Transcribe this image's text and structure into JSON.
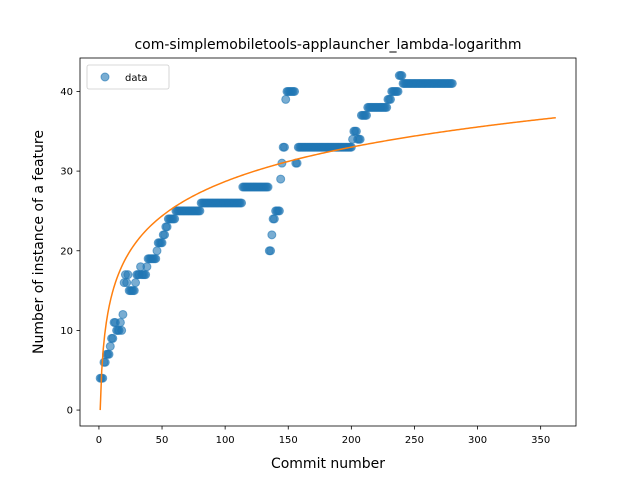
{
  "chart_data": {
    "type": "scatter",
    "title": "com-simplemobiletools-applauncher_lambda-logarithm",
    "xlabel": "Commit number",
    "ylabel": "Number of instance of a feature",
    "xlim": [
      -15,
      378
    ],
    "ylim": [
      -2,
      44.2
    ],
    "xticks": [
      0,
      50,
      100,
      150,
      200,
      250,
      300,
      350
    ],
    "yticks": [
      0,
      10,
      20,
      30,
      40
    ],
    "grid": false,
    "legend": {
      "position": "top-left",
      "entries": [
        "data"
      ]
    },
    "colors": {
      "scatter": "#1f77b4",
      "fit": "#ff7f0e"
    },
    "series": [
      {
        "name": "data",
        "kind": "scatter",
        "points": [
          [
            1,
            4
          ],
          [
            2,
            4
          ],
          [
            3,
            4
          ],
          [
            4,
            6
          ],
          [
            5,
            6
          ],
          [
            6,
            7
          ],
          [
            7,
            7
          ],
          [
            8,
            7
          ],
          [
            9,
            8
          ],
          [
            10,
            9
          ],
          [
            11,
            9
          ],
          [
            12,
            11
          ],
          [
            13,
            11
          ],
          [
            14,
            10
          ],
          [
            15,
            10
          ],
          [
            16,
            10
          ],
          [
            17,
            11
          ],
          [
            18,
            10
          ],
          [
            19,
            12
          ],
          [
            20,
            16
          ],
          [
            21,
            17
          ],
          [
            22,
            16
          ],
          [
            23,
            17
          ],
          [
            24,
            15
          ],
          [
            25,
            15
          ],
          [
            26,
            15
          ],
          [
            27,
            15
          ],
          [
            28,
            15
          ],
          [
            29,
            16
          ],
          [
            30,
            17
          ],
          [
            31,
            17
          ],
          [
            32,
            17
          ],
          [
            33,
            18
          ],
          [
            34,
            17
          ],
          [
            35,
            17
          ],
          [
            36,
            17
          ],
          [
            37,
            17
          ],
          [
            38,
            18
          ],
          [
            39,
            19
          ],
          [
            40,
            19
          ],
          [
            41,
            19
          ],
          [
            42,
            19
          ],
          [
            43,
            19
          ],
          [
            44,
            19
          ],
          [
            45,
            19
          ],
          [
            46,
            20
          ],
          [
            47,
            21
          ],
          [
            48,
            21
          ],
          [
            49,
            21
          ],
          [
            50,
            21
          ],
          [
            51,
            22
          ],
          [
            52,
            22
          ],
          [
            53,
            23
          ],
          [
            54,
            23
          ],
          [
            55,
            24
          ],
          [
            56,
            24
          ],
          [
            57,
            24
          ],
          [
            58,
            24
          ],
          [
            59,
            24
          ],
          [
            60,
            24
          ],
          [
            61,
            25
          ],
          [
            62,
            25
          ],
          [
            63,
            25
          ],
          [
            64,
            25
          ],
          [
            65,
            25
          ],
          [
            66,
            25
          ],
          [
            67,
            25
          ],
          [
            68,
            25
          ],
          [
            69,
            25
          ],
          [
            70,
            25
          ],
          [
            71,
            25
          ],
          [
            72,
            25
          ],
          [
            73,
            25
          ],
          [
            74,
            25
          ],
          [
            75,
            25
          ],
          [
            76,
            25
          ],
          [
            77,
            25
          ],
          [
            78,
            25
          ],
          [
            79,
            25
          ],
          [
            80,
            25
          ],
          [
            81,
            26
          ],
          [
            82,
            26
          ],
          [
            83,
            26
          ],
          [
            84,
            26
          ],
          [
            85,
            26
          ],
          [
            86,
            26
          ],
          [
            87,
            26
          ],
          [
            88,
            26
          ],
          [
            89,
            26
          ],
          [
            90,
            26
          ],
          [
            91,
            26
          ],
          [
            92,
            26
          ],
          [
            93,
            26
          ],
          [
            94,
            26
          ],
          [
            95,
            26
          ],
          [
            96,
            26
          ],
          [
            97,
            26
          ],
          [
            98,
            26
          ],
          [
            99,
            26
          ],
          [
            100,
            26
          ],
          [
            101,
            26
          ],
          [
            102,
            26
          ],
          [
            103,
            26
          ],
          [
            104,
            26
          ],
          [
            105,
            26
          ],
          [
            106,
            26
          ],
          [
            107,
            26
          ],
          [
            108,
            26
          ],
          [
            109,
            26
          ],
          [
            110,
            26
          ],
          [
            111,
            26
          ],
          [
            112,
            26
          ],
          [
            113,
            26
          ],
          [
            114,
            28
          ],
          [
            115,
            28
          ],
          [
            116,
            28
          ],
          [
            117,
            28
          ],
          [
            118,
            28
          ],
          [
            119,
            28
          ],
          [
            120,
            28
          ],
          [
            121,
            28
          ],
          [
            122,
            28
          ],
          [
            123,
            28
          ],
          [
            124,
            28
          ],
          [
            125,
            28
          ],
          [
            126,
            28
          ],
          [
            127,
            28
          ],
          [
            128,
            28
          ],
          [
            129,
            28
          ],
          [
            130,
            28
          ],
          [
            131,
            28
          ],
          [
            132,
            28
          ],
          [
            133,
            28
          ],
          [
            134,
            28
          ],
          [
            135,
            20
          ],
          [
            136,
            20
          ],
          [
            137,
            22
          ],
          [
            138,
            24
          ],
          [
            139,
            24
          ],
          [
            140,
            25
          ],
          [
            141,
            25
          ],
          [
            142,
            25
          ],
          [
            143,
            25
          ],
          [
            144,
            29
          ],
          [
            145,
            31
          ],
          [
            146,
            33
          ],
          [
            147,
            33
          ],
          [
            148,
            39
          ],
          [
            149,
            40
          ],
          [
            150,
            40
          ],
          [
            151,
            40
          ],
          [
            152,
            40
          ],
          [
            153,
            40
          ],
          [
            154,
            40
          ],
          [
            155,
            40
          ],
          [
            156,
            31
          ],
          [
            157,
            31
          ],
          [
            158,
            33
          ],
          [
            159,
            33
          ],
          [
            160,
            33
          ],
          [
            161,
            33
          ],
          [
            162,
            33
          ],
          [
            163,
            33
          ],
          [
            164,
            33
          ],
          [
            165,
            33
          ],
          [
            166,
            33
          ],
          [
            167,
            33
          ],
          [
            168,
            33
          ],
          [
            169,
            33
          ],
          [
            170,
            33
          ],
          [
            171,
            33
          ],
          [
            172,
            33
          ],
          [
            173,
            33
          ],
          [
            174,
            33
          ],
          [
            175,
            33
          ],
          [
            176,
            33
          ],
          [
            177,
            33
          ],
          [
            178,
            33
          ],
          [
            179,
            33
          ],
          [
            180,
            33
          ],
          [
            181,
            33
          ],
          [
            182,
            33
          ],
          [
            183,
            33
          ],
          [
            184,
            33
          ],
          [
            185,
            33
          ],
          [
            186,
            33
          ],
          [
            187,
            33
          ],
          [
            188,
            33
          ],
          [
            189,
            33
          ],
          [
            190,
            33
          ],
          [
            191,
            33
          ],
          [
            192,
            33
          ],
          [
            193,
            33
          ],
          [
            194,
            33
          ],
          [
            195,
            33
          ],
          [
            196,
            33
          ],
          [
            197,
            33
          ],
          [
            198,
            33
          ],
          [
            199,
            33
          ],
          [
            200,
            33
          ],
          [
            201,
            34
          ],
          [
            202,
            35
          ],
          [
            203,
            35
          ],
          [
            204,
            35
          ],
          [
            205,
            34
          ],
          [
            206,
            34
          ],
          [
            207,
            34
          ],
          [
            208,
            37
          ],
          [
            209,
            37
          ],
          [
            210,
            37
          ],
          [
            211,
            37
          ],
          [
            212,
            37
          ],
          [
            213,
            38
          ],
          [
            214,
            38
          ],
          [
            215,
            38
          ],
          [
            216,
            38
          ],
          [
            217,
            38
          ],
          [
            218,
            38
          ],
          [
            219,
            38
          ],
          [
            220,
            38
          ],
          [
            221,
            38
          ],
          [
            222,
            38
          ],
          [
            223,
            38
          ],
          [
            224,
            38
          ],
          [
            225,
            38
          ],
          [
            226,
            38
          ],
          [
            227,
            38
          ],
          [
            228,
            38
          ],
          [
            229,
            39
          ],
          [
            230,
            39
          ],
          [
            231,
            39
          ],
          [
            232,
            40
          ],
          [
            233,
            40
          ],
          [
            234,
            40
          ],
          [
            235,
            40
          ],
          [
            236,
            40
          ],
          [
            237,
            40
          ],
          [
            238,
            42
          ],
          [
            239,
            42
          ],
          [
            240,
            42
          ],
          [
            241,
            41
          ],
          [
            242,
            41
          ],
          [
            243,
            41
          ],
          [
            244,
            41
          ],
          [
            245,
            41
          ],
          [
            246,
            41
          ],
          [
            247,
            41
          ],
          [
            248,
            41
          ],
          [
            249,
            41
          ],
          [
            250,
            41
          ],
          [
            251,
            41
          ],
          [
            252,
            41
          ],
          [
            253,
            41
          ],
          [
            254,
            41
          ],
          [
            255,
            41
          ],
          [
            256,
            41
          ],
          [
            257,
            41
          ],
          [
            258,
            41
          ],
          [
            259,
            41
          ],
          [
            260,
            41
          ],
          [
            261,
            41
          ],
          [
            262,
            41
          ],
          [
            263,
            41
          ],
          [
            264,
            41
          ],
          [
            265,
            41
          ],
          [
            266,
            41
          ],
          [
            267,
            41
          ],
          [
            268,
            41
          ],
          [
            269,
            41
          ],
          [
            270,
            41
          ],
          [
            271,
            41
          ],
          [
            272,
            41
          ],
          [
            273,
            41
          ],
          [
            274,
            41
          ],
          [
            275,
            41
          ],
          [
            276,
            41
          ],
          [
            277,
            41
          ],
          [
            278,
            41
          ],
          [
            279,
            41
          ],
          [
            280,
            41
          ]
        ]
      },
      {
        "kind": "line",
        "equation": "y = 6.23 * ln(x)",
        "xrange": [
          1,
          362
        ]
      }
    ]
  }
}
